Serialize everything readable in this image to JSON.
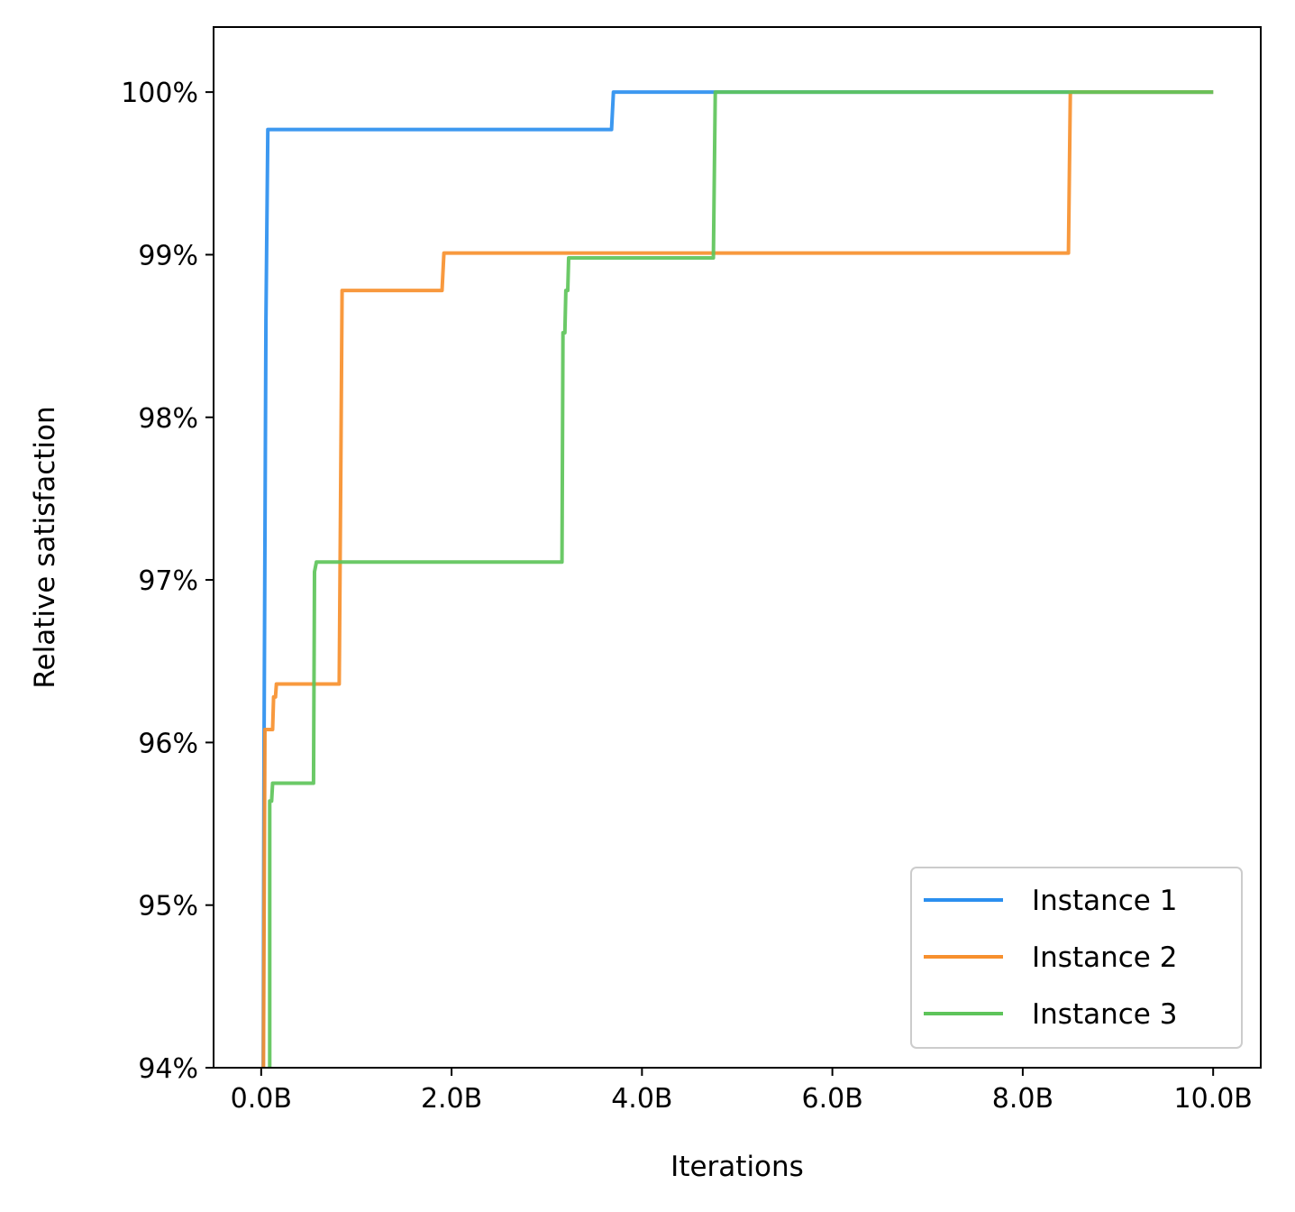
{
  "chart_data": {
    "type": "line",
    "title": "",
    "xlabel": "Iterations",
    "ylabel": "Relative satisfaction",
    "xlim": [
      -0.5,
      10.5
    ],
    "ylim": [
      94,
      100.4
    ],
    "x_unit": "B",
    "x_ticks": [
      {
        "value": 0,
        "label": "0.0B"
      },
      {
        "value": 2,
        "label": "2.0B"
      },
      {
        "value": 4,
        "label": "4.0B"
      },
      {
        "value": 6,
        "label": "6.0B"
      },
      {
        "value": 8,
        "label": "8.0B"
      },
      {
        "value": 10,
        "label": "10.0B"
      }
    ],
    "y_ticks": [
      {
        "value": 94,
        "label": "94%"
      },
      {
        "value": 95,
        "label": "95%"
      },
      {
        "value": 96,
        "label": "96%"
      },
      {
        "value": 97,
        "label": "97%"
      },
      {
        "value": 98,
        "label": "98%"
      },
      {
        "value": 99,
        "label": "99%"
      },
      {
        "value": 100,
        "label": "100%"
      }
    ],
    "grid": false,
    "legend_position": "bottom-right",
    "series": [
      {
        "name": "Instance 1",
        "color": "#2b8fef",
        "points": [
          [
            0.02,
            93.5
          ],
          [
            0.03,
            96.0
          ],
          [
            0.05,
            98.6
          ],
          [
            0.07,
            99.77
          ],
          [
            3.68,
            99.77
          ],
          [
            3.7,
            100.0
          ],
          [
            10.0,
            100.0
          ]
        ]
      },
      {
        "name": "Instance 2",
        "color": "#f7902e",
        "points": [
          [
            0.02,
            93.5
          ],
          [
            0.04,
            96.08
          ],
          [
            0.12,
            96.08
          ],
          [
            0.13,
            96.28
          ],
          [
            0.15,
            96.28
          ],
          [
            0.16,
            96.36
          ],
          [
            0.82,
            96.36
          ],
          [
            0.84,
            98.0
          ],
          [
            0.85,
            98.78
          ],
          [
            1.9,
            98.78
          ],
          [
            1.92,
            99.01
          ],
          [
            8.48,
            99.01
          ],
          [
            8.5,
            100.0
          ],
          [
            10.0,
            100.0
          ]
        ]
      },
      {
        "name": "Instance 3",
        "color": "#5ec45a",
        "points": [
          [
            0.09,
            93.5
          ],
          [
            0.09,
            95.64
          ],
          [
            0.11,
            95.64
          ],
          [
            0.12,
            95.75
          ],
          [
            0.55,
            95.75
          ],
          [
            0.56,
            97.05
          ],
          [
            0.58,
            97.11
          ],
          [
            3.16,
            97.11
          ],
          [
            3.17,
            98.52
          ],
          [
            3.19,
            98.52
          ],
          [
            3.2,
            98.78
          ],
          [
            3.22,
            98.78
          ],
          [
            3.23,
            98.98
          ],
          [
            4.75,
            98.98
          ],
          [
            4.77,
            100.0
          ],
          [
            10.0,
            100.0
          ]
        ]
      }
    ]
  }
}
